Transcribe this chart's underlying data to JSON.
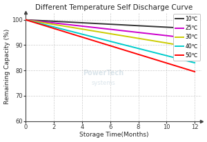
{
  "title": "Different Temperature Self Discharge Curve",
  "xlabel": "Storage Time(Months)",
  "ylabel": "Remaining Capacity (%)",
  "xlim": [
    0,
    12.5
  ],
  "ylim": [
    60,
    103
  ],
  "xticks": [
    0,
    2,
    4,
    6,
    8,
    10,
    12
  ],
  "yticks": [
    60,
    70,
    80,
    90,
    100
  ],
  "series": [
    {
      "label": "10℃",
      "color": "#333333",
      "x": [
        0,
        12
      ],
      "y": [
        100,
        96.5
      ]
    },
    {
      "label": "25℃",
      "color": "#cc00cc",
      "x": [
        0,
        12
      ],
      "y": [
        100,
        92.5
      ]
    },
    {
      "label": "30℃",
      "color": "#cccc00",
      "x": [
        0,
        12
      ],
      "y": [
        100,
        89.0
      ]
    },
    {
      "label": "40℃",
      "color": "#00cccc",
      "x": [
        0,
        12
      ],
      "y": [
        100,
        83.0
      ]
    },
    {
      "label": "50℃",
      "color": "#ff0000",
      "x": [
        0,
        12
      ],
      "y": [
        100,
        79.5
      ]
    }
  ],
  "background_color": "#ffffff",
  "grid_color": "#aaaaaa",
  "title_fontsize": 7.5,
  "label_fontsize": 6.5,
  "tick_fontsize": 6,
  "legend_fontsize": 5.5,
  "line_width": 1.4,
  "watermark1": "PowerTech",
  "watermark2": "systems"
}
